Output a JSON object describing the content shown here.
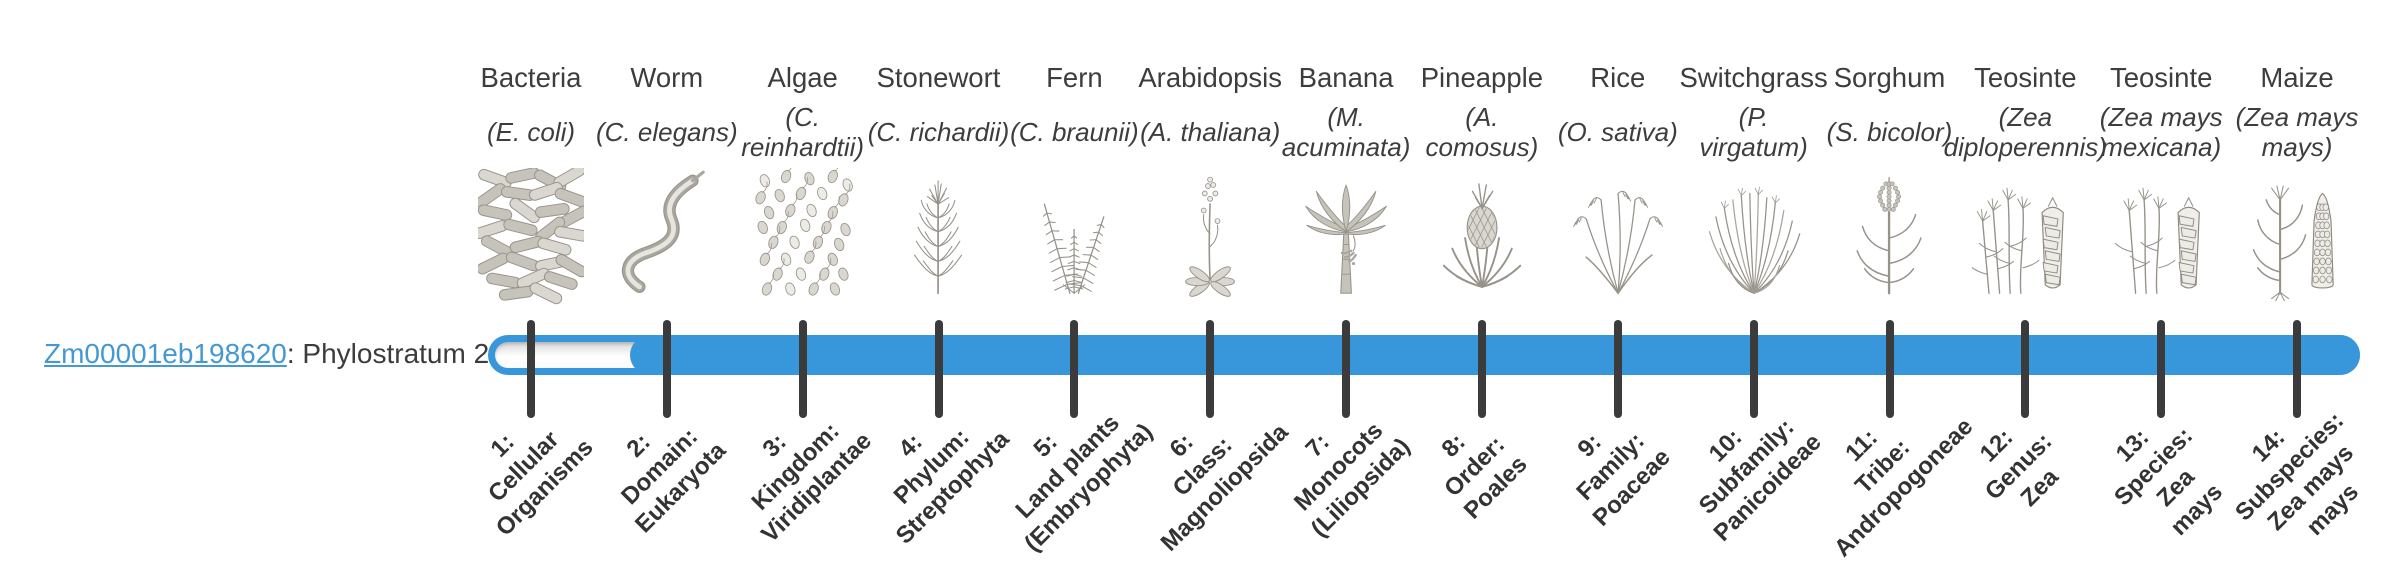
{
  "gene": {
    "id": "Zm00001eb198620",
    "suffix": ": Phylostratum 2",
    "classification": "Phylostratum 2"
  },
  "colors": {
    "bar_blue": "#3797DA",
    "link_blue": "#4499D4",
    "tick_dark": "#3b3b3b",
    "text_dark": "#3d3d3d",
    "label_dark": "#333333",
    "icon_gray": "#97938b"
  },
  "chart_data": {
    "type": "bar",
    "subtype": "phylostratum-timeline",
    "title": "",
    "gene_id": "Zm00001eb198620",
    "gene_phylostratum": 2,
    "num_phylostrata": 14,
    "filled_range": [
      2,
      14
    ],
    "legend_position": "none",
    "grid": false,
    "categories": [
      "1: Cellular Organisms",
      "2: Domain: Eukaryota",
      "3: Kingdom: Viridiplantae",
      "4: Phylum: Streptophyta",
      "5: Land plants (Embryophyta)",
      "6: Class: Magnoliopsida",
      "7: Monocots (Liliopsida)",
      "8: Order: Poales",
      "9: Family: Poaceae",
      "10: Subfamily: Panicoideae",
      "11: Tribe: Andropogoneae",
      "12: Genus: Zea",
      "13: Species: Zea mays",
      "14: Subspecies: Zea mays mays"
    ],
    "organisms": [
      {
        "index": 1,
        "common_name": "Bacteria",
        "species_lines": [
          "(E. coli)"
        ],
        "rank_lines": [
          "1:",
          "Cellular",
          "Organisms"
        ],
        "icon": "bacteria-icon"
      },
      {
        "index": 2,
        "common_name": "Worm",
        "species_lines": [
          "(C. elegans)"
        ],
        "rank_lines": [
          "2:",
          "Domain:",
          "Eukaryota"
        ],
        "icon": "worm-icon"
      },
      {
        "index": 3,
        "common_name": "Algae",
        "species_lines": [
          "(C.",
          "reinhardtii)"
        ],
        "rank_lines": [
          "3:",
          "Kingdom:",
          "Viridiplantae"
        ],
        "icon": "algae-icon"
      },
      {
        "index": 4,
        "common_name": "Stonewort",
        "species_lines": [
          "(C. richardii)"
        ],
        "rank_lines": [
          "4:",
          "Phylum:",
          "Streptophyta"
        ],
        "icon": "stonewort-icon"
      },
      {
        "index": 5,
        "common_name": "Fern",
        "species_lines": [
          "(C. braunii)"
        ],
        "rank_lines": [
          "5:",
          "Land plants",
          "(Embryophyta)"
        ],
        "icon": "fern-icon"
      },
      {
        "index": 6,
        "common_name": "Arabidopsis",
        "species_lines": [
          "(A. thaliana)"
        ],
        "rank_lines": [
          "6:",
          "Class:",
          "Magnoliopsida"
        ],
        "icon": "arabidopsis-icon"
      },
      {
        "index": 7,
        "common_name": "Banana",
        "species_lines": [
          "(M.",
          "acuminata)"
        ],
        "rank_lines": [
          "7:",
          "Monocots",
          "(Liliopsida)"
        ],
        "icon": "banana-icon"
      },
      {
        "index": 8,
        "common_name": "Pineapple",
        "species_lines": [
          "(A.",
          "comosus)"
        ],
        "rank_lines": [
          "8:",
          "Order:",
          "Poales"
        ],
        "icon": "pineapple-icon"
      },
      {
        "index": 9,
        "common_name": "Rice",
        "species_lines": [
          "(O. sativa)"
        ],
        "rank_lines": [
          "9:",
          "Family:",
          "Poaceae"
        ],
        "icon": "rice-icon"
      },
      {
        "index": 10,
        "common_name": "Switchgrass",
        "species_lines": [
          "(P.",
          "virgatum)"
        ],
        "rank_lines": [
          "10:",
          "Subfamily:",
          "Panicoideae"
        ],
        "icon": "switchgrass-icon"
      },
      {
        "index": 11,
        "common_name": "Sorghum",
        "species_lines": [
          "(S. bicolor)"
        ],
        "rank_lines": [
          "11:",
          "Tribe:",
          "Andropogoneae"
        ],
        "icon": "sorghum-icon"
      },
      {
        "index": 12,
        "common_name": "Teosinte",
        "species_lines": [
          "(Zea",
          "diploperennis)"
        ],
        "rank_lines": [
          "12:",
          "Genus:",
          "Zea"
        ],
        "icon": "teosinte-icon"
      },
      {
        "index": 13,
        "common_name": "Teosinte",
        "species_lines": [
          "(Zea mays",
          "mexicana)"
        ],
        "rank_lines": [
          "13:",
          "Species:",
          "Zea",
          "mays"
        ],
        "icon": "teosinte2-icon"
      },
      {
        "index": 14,
        "common_name": "Maize",
        "species_lines": [
          "(Zea mays",
          "mays)"
        ],
        "rank_lines": [
          "14:",
          "Subspecies:",
          "Zea mays",
          "mays"
        ],
        "icon": "maize-icon"
      }
    ]
  }
}
